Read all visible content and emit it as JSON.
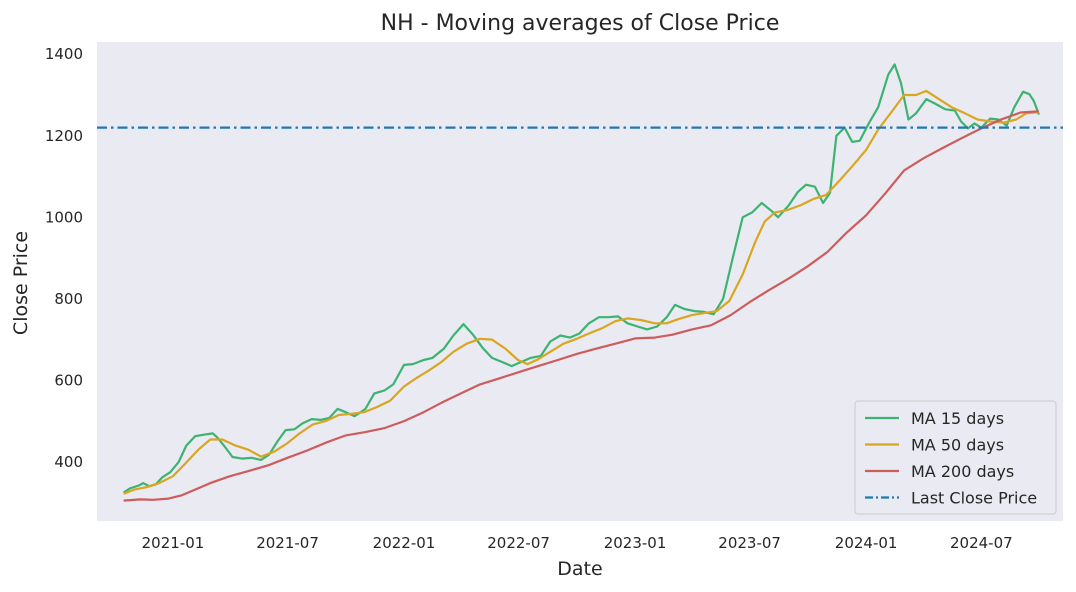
{
  "chart_data": {
    "type": "line",
    "title": "NH - Moving averages of Close Price",
    "xlabel": "Date",
    "ylabel": "Close Price",
    "xlim": [
      "2020-09-03",
      "2024-11-07"
    ],
    "ylim": [
      255,
      1430
    ],
    "x_ticks": [
      "2021-01",
      "2021-07",
      "2022-01",
      "2022-07",
      "2023-01",
      "2023-07",
      "2024-01",
      "2024-07"
    ],
    "y_ticks": [
      400,
      600,
      800,
      1000,
      1200,
      1400
    ],
    "grid": false,
    "background": "#eaeaf2",
    "legend": {
      "placement": "bottom-right"
    },
    "series": [
      {
        "name": "MA 15 days",
        "color": "#3cb371",
        "style": "solid",
        "points": [
          [
            "2020-10-15",
            325
          ],
          [
            "2020-10-25",
            335
          ],
          [
            "2020-11-08",
            342
          ],
          [
            "2020-11-15",
            348
          ],
          [
            "2020-11-25",
            340
          ],
          [
            "2020-12-05",
            345
          ],
          [
            "2020-12-15",
            362
          ],
          [
            "2020-12-28",
            375
          ],
          [
            "2021-01-10",
            400
          ],
          [
            "2021-01-22",
            440
          ],
          [
            "2021-02-05",
            463
          ],
          [
            "2021-02-20",
            467
          ],
          [
            "2021-03-05",
            470
          ],
          [
            "2021-03-12",
            460
          ],
          [
            "2021-03-25",
            435
          ],
          [
            "2021-04-05",
            412
          ],
          [
            "2021-04-20",
            408
          ],
          [
            "2021-05-05",
            410
          ],
          [
            "2021-05-20",
            405
          ],
          [
            "2021-06-02",
            418
          ],
          [
            "2021-06-15",
            450
          ],
          [
            "2021-06-28",
            478
          ],
          [
            "2021-07-12",
            480
          ],
          [
            "2021-07-25",
            495
          ],
          [
            "2021-08-08",
            505
          ],
          [
            "2021-08-22",
            503
          ],
          [
            "2021-09-05",
            508
          ],
          [
            "2021-09-18",
            530
          ],
          [
            "2021-10-01",
            522
          ],
          [
            "2021-10-15",
            512
          ],
          [
            "2021-11-01",
            530
          ],
          [
            "2021-11-15",
            568
          ],
          [
            "2021-12-01",
            575
          ],
          [
            "2021-12-15",
            590
          ],
          [
            "2022-01-01",
            638
          ],
          [
            "2022-01-15",
            640
          ],
          [
            "2022-02-01",
            650
          ],
          [
            "2022-02-15",
            655
          ],
          [
            "2022-03-05",
            678
          ],
          [
            "2022-03-20",
            710
          ],
          [
            "2022-04-05",
            738
          ],
          [
            "2022-04-20",
            712
          ],
          [
            "2022-05-05",
            680
          ],
          [
            "2022-05-20",
            655
          ],
          [
            "2022-06-05",
            645
          ],
          [
            "2022-06-20",
            635
          ],
          [
            "2022-07-05",
            645
          ],
          [
            "2022-07-20",
            655
          ],
          [
            "2022-08-05",
            660
          ],
          [
            "2022-08-20",
            695
          ],
          [
            "2022-09-05",
            710
          ],
          [
            "2022-09-20",
            705
          ],
          [
            "2022-10-05",
            715
          ],
          [
            "2022-10-20",
            740
          ],
          [
            "2022-11-05",
            755
          ],
          [
            "2022-11-20",
            755
          ],
          [
            "2022-12-05",
            757
          ],
          [
            "2022-12-20",
            740
          ],
          [
            "2023-01-05",
            732
          ],
          [
            "2023-01-20",
            725
          ],
          [
            "2023-02-05",
            732
          ],
          [
            "2023-02-20",
            755
          ],
          [
            "2023-03-05",
            785
          ],
          [
            "2023-03-20",
            775
          ],
          [
            "2023-04-05",
            770
          ],
          [
            "2023-04-20",
            768
          ],
          [
            "2023-05-05",
            762
          ],
          [
            "2023-05-20",
            800
          ],
          [
            "2023-06-05",
            905
          ],
          [
            "2023-06-20",
            1000
          ],
          [
            "2023-07-05",
            1012
          ],
          [
            "2023-07-20",
            1035
          ],
          [
            "2023-08-05",
            1015
          ],
          [
            "2023-08-15",
            1000
          ],
          [
            "2023-09-01",
            1030
          ],
          [
            "2023-09-15",
            1062
          ],
          [
            "2023-09-28",
            1080
          ],
          [
            "2023-10-12",
            1075
          ],
          [
            "2023-10-25",
            1035
          ],
          [
            "2023-11-05",
            1060
          ],
          [
            "2023-11-15",
            1200
          ],
          [
            "2023-11-28",
            1220
          ],
          [
            "2023-12-10",
            1185
          ],
          [
            "2023-12-22",
            1188
          ],
          [
            "2024-01-05",
            1230
          ],
          [
            "2024-01-20",
            1270
          ],
          [
            "2024-02-05",
            1350
          ],
          [
            "2024-02-15",
            1375
          ],
          [
            "2024-02-25",
            1330
          ],
          [
            "2024-03-08",
            1240
          ],
          [
            "2024-03-20",
            1255
          ],
          [
            "2024-04-05",
            1290
          ],
          [
            "2024-04-20",
            1278
          ],
          [
            "2024-05-05",
            1265
          ],
          [
            "2024-05-20",
            1262
          ],
          [
            "2024-05-30",
            1235
          ],
          [
            "2024-06-10",
            1218
          ],
          [
            "2024-06-20",
            1230
          ],
          [
            "2024-07-01",
            1220
          ],
          [
            "2024-07-15",
            1242
          ],
          [
            "2024-07-28",
            1240
          ],
          [
            "2024-08-10",
            1225
          ],
          [
            "2024-08-22",
            1270
          ],
          [
            "2024-09-05",
            1308
          ],
          [
            "2024-09-15",
            1302
          ],
          [
            "2024-09-22",
            1285
          ],
          [
            "2024-09-30",
            1252
          ]
        ]
      },
      {
        "name": "MA 50 days",
        "color": "#daa520",
        "style": "solid",
        "points": [
          [
            "2020-10-15",
            322
          ],
          [
            "2020-11-01",
            332
          ],
          [
            "2020-11-20",
            338
          ],
          [
            "2020-12-10",
            348
          ],
          [
            "2021-01-01",
            365
          ],
          [
            "2021-01-20",
            395
          ],
          [
            "2021-02-10",
            430
          ],
          [
            "2021-03-01",
            455
          ],
          [
            "2021-03-20",
            455
          ],
          [
            "2021-04-10",
            440
          ],
          [
            "2021-04-30",
            430
          ],
          [
            "2021-05-20",
            413
          ],
          [
            "2021-06-10",
            425
          ],
          [
            "2021-06-30",
            445
          ],
          [
            "2021-07-20",
            470
          ],
          [
            "2021-08-10",
            492
          ],
          [
            "2021-08-30",
            500
          ],
          [
            "2021-09-20",
            515
          ],
          [
            "2021-10-10",
            518
          ],
          [
            "2021-10-30",
            522
          ],
          [
            "2021-11-20",
            535
          ],
          [
            "2021-12-10",
            550
          ],
          [
            "2022-01-01",
            585
          ],
          [
            "2022-01-20",
            605
          ],
          [
            "2022-02-10",
            625
          ],
          [
            "2022-03-01",
            645
          ],
          [
            "2022-03-20",
            670
          ],
          [
            "2022-04-10",
            690
          ],
          [
            "2022-05-01",
            702
          ],
          [
            "2022-05-20",
            700
          ],
          [
            "2022-06-10",
            678
          ],
          [
            "2022-06-30",
            650
          ],
          [
            "2022-07-15",
            640
          ],
          [
            "2022-08-01",
            652
          ],
          [
            "2022-08-20",
            670
          ],
          [
            "2022-09-10",
            690
          ],
          [
            "2022-10-01",
            702
          ],
          [
            "2022-10-20",
            715
          ],
          [
            "2022-11-10",
            728
          ],
          [
            "2022-12-01",
            745
          ],
          [
            "2022-12-20",
            752
          ],
          [
            "2023-01-10",
            748
          ],
          [
            "2023-02-01",
            740
          ],
          [
            "2023-02-20",
            740
          ],
          [
            "2023-03-10",
            750
          ],
          [
            "2023-04-01",
            760
          ],
          [
            "2023-04-20",
            765
          ],
          [
            "2023-05-10",
            770
          ],
          [
            "2023-05-30",
            795
          ],
          [
            "2023-06-20",
            860
          ],
          [
            "2023-07-10",
            940
          ],
          [
            "2023-07-25",
            990
          ],
          [
            "2023-08-10",
            1012
          ],
          [
            "2023-08-30",
            1018
          ],
          [
            "2023-09-20",
            1030
          ],
          [
            "2023-10-10",
            1045
          ],
          [
            "2023-10-30",
            1055
          ],
          [
            "2023-11-20",
            1090
          ],
          [
            "2023-12-10",
            1125
          ],
          [
            "2024-01-01",
            1165
          ],
          [
            "2024-01-20",
            1215
          ],
          [
            "2024-02-10",
            1258
          ],
          [
            "2024-03-01",
            1300
          ],
          [
            "2024-03-20",
            1300
          ],
          [
            "2024-04-05",
            1310
          ],
          [
            "2024-04-25",
            1290
          ],
          [
            "2024-05-15",
            1270
          ],
          [
            "2024-06-05",
            1255
          ],
          [
            "2024-06-25",
            1240
          ],
          [
            "2024-07-15",
            1235
          ],
          [
            "2024-08-05",
            1232
          ],
          [
            "2024-08-25",
            1240
          ],
          [
            "2024-09-10",
            1255
          ],
          [
            "2024-09-30",
            1258
          ]
        ]
      },
      {
        "name": "MA 200 days",
        "color": "#cd5c5c",
        "style": "solid",
        "points": [
          [
            "2020-10-15",
            305
          ],
          [
            "2020-11-10",
            308
          ],
          [
            "2020-12-01",
            307
          ],
          [
            "2020-12-25",
            310
          ],
          [
            "2021-01-15",
            318
          ],
          [
            "2021-02-05",
            332
          ],
          [
            "2021-03-01",
            348
          ],
          [
            "2021-04-01",
            365
          ],
          [
            "2021-05-01",
            378
          ],
          [
            "2021-06-01",
            392
          ],
          [
            "2021-07-01",
            410
          ],
          [
            "2021-08-01",
            428
          ],
          [
            "2021-09-01",
            448
          ],
          [
            "2021-10-01",
            465
          ],
          [
            "2021-11-01",
            473
          ],
          [
            "2021-12-01",
            483
          ],
          [
            "2022-01-01",
            500
          ],
          [
            "2022-02-01",
            522
          ],
          [
            "2022-03-01",
            545
          ],
          [
            "2022-04-01",
            568
          ],
          [
            "2022-05-01",
            590
          ],
          [
            "2022-06-01",
            605
          ],
          [
            "2022-07-01",
            620
          ],
          [
            "2022-08-01",
            635
          ],
          [
            "2022-09-01",
            650
          ],
          [
            "2022-10-01",
            665
          ],
          [
            "2022-11-01",
            678
          ],
          [
            "2022-12-01",
            690
          ],
          [
            "2023-01-01",
            703
          ],
          [
            "2023-02-01",
            705
          ],
          [
            "2023-03-01",
            712
          ],
          [
            "2023-04-01",
            725
          ],
          [
            "2023-05-01",
            735
          ],
          [
            "2023-06-01",
            760
          ],
          [
            "2023-07-01",
            792
          ],
          [
            "2023-08-01",
            822
          ],
          [
            "2023-09-01",
            850
          ],
          [
            "2023-10-01",
            880
          ],
          [
            "2023-11-01",
            915
          ],
          [
            "2023-12-01",
            962
          ],
          [
            "2024-01-01",
            1005
          ],
          [
            "2024-02-01",
            1060
          ],
          [
            "2024-03-01",
            1115
          ],
          [
            "2024-04-01",
            1145
          ],
          [
            "2024-05-01",
            1170
          ],
          [
            "2024-06-01",
            1195
          ],
          [
            "2024-07-01",
            1218
          ],
          [
            "2024-08-01",
            1240
          ],
          [
            "2024-09-01",
            1257
          ],
          [
            "2024-09-30",
            1260
          ]
        ]
      },
      {
        "name": "Last Close Price",
        "color": "#1f77b4",
        "style": "dashdot",
        "y": 1220
      }
    ]
  }
}
